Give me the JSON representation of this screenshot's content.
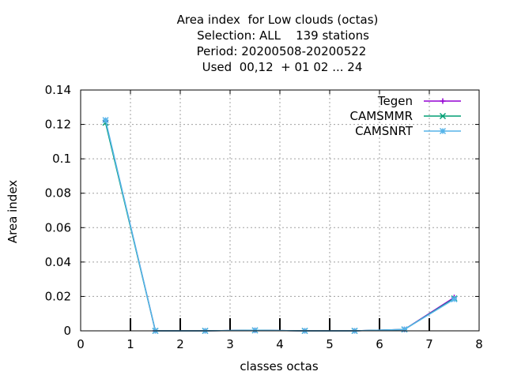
{
  "chart_data": {
    "type": "line",
    "title_lines": [
      "Area index  for Low clouds (octas)",
      "Selection: ALL    139 stations",
      "Period: 20200508-20200522",
      "Used  00,12  + 01 02 ... 24"
    ],
    "xlabel": "classes octas",
    "ylabel": "Area index",
    "xlim": [
      0,
      8
    ],
    "ylim": [
      0,
      0.14
    ],
    "xticks": [
      "0",
      "1",
      "2",
      "3",
      "4",
      "5",
      "6",
      "7",
      "8"
    ],
    "yticks": [
      "0",
      "0.02",
      "0.04",
      "0.06",
      "0.08",
      "0.1",
      "0.12",
      "0.14"
    ],
    "grid": true,
    "legend_position": "top-right",
    "x": [
      0.5,
      1.5,
      2.5,
      3.5,
      4.5,
      5.5,
      6.5,
      7.5
    ],
    "series": [
      {
        "name": "Tegen",
        "color": "#9400d3",
        "marker": "plus-icon",
        "values": [
          0.122,
          0.0,
          0.0,
          0.0003,
          0.0,
          0.0,
          0.0008,
          0.0194
        ]
      },
      {
        "name": "CAMSMMR",
        "color": "#009e73",
        "marker": "cross-icon",
        "values": [
          0.121,
          0.0,
          0.0,
          0.0003,
          0.0,
          0.0,
          0.0008,
          0.0188
        ]
      },
      {
        "name": "CAMSNRT",
        "color": "#56b4e9",
        "marker": "star-icon",
        "values": [
          0.1225,
          0.0,
          0.0,
          0.0003,
          0.0,
          0.0,
          0.0008,
          0.0184
        ]
      }
    ]
  }
}
